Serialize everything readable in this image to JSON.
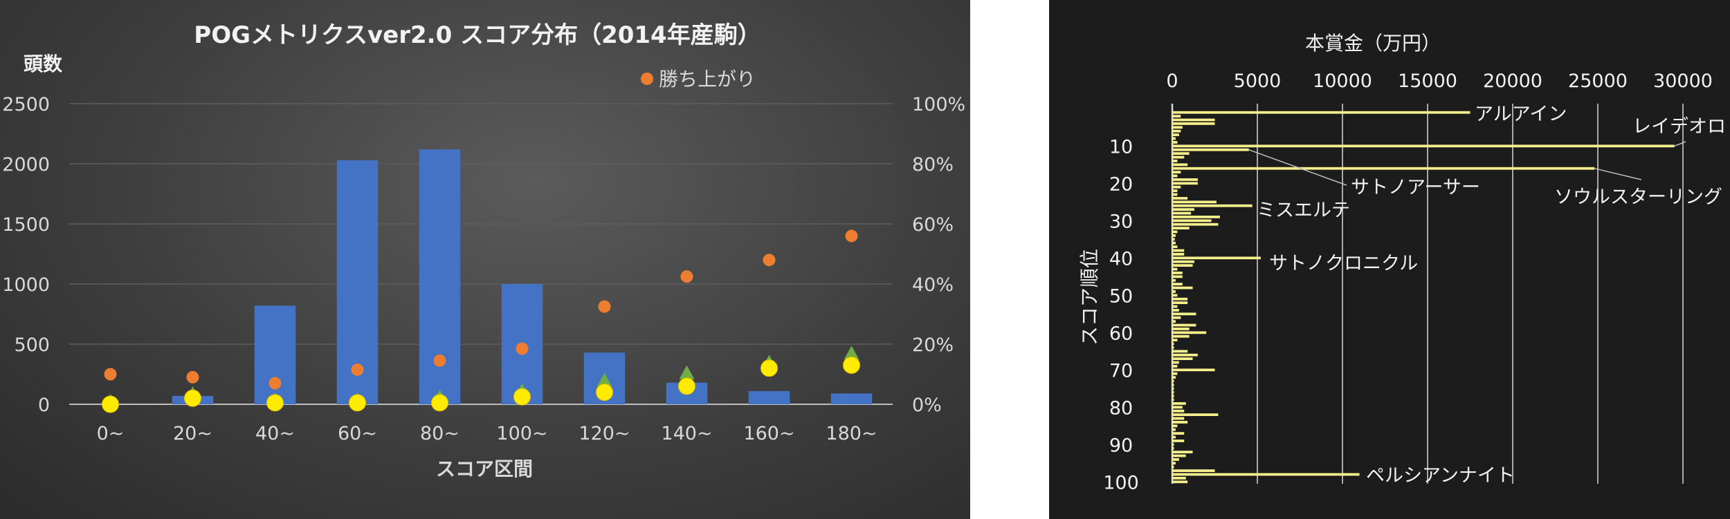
{
  "chart_data": [
    {
      "type": "bar",
      "title": "POGメトリクスver2.0 スコア分布（2014年産駒）",
      "xlabel": "スコア区間",
      "ylabel": "頭数",
      "categories": [
        "0~",
        "20~",
        "40~",
        "60~",
        "80~",
        "100~",
        "120~",
        "140~",
        "160~",
        "180~"
      ],
      "ylim": [
        0,
        2500
      ],
      "yticks": [
        "0",
        "500",
        "1000",
        "1500",
        "2000",
        "2500"
      ],
      "y2lim": [
        0,
        100
      ],
      "y2ticks": [
        "0%",
        "20%",
        "40%",
        "60%",
        "80%",
        "100%"
      ],
      "grid": true,
      "legend": [
        {
          "name": "勝ち上がり",
          "color": "#ed7d31"
        }
      ],
      "legend_position": "top-right",
      "series": [
        {
          "kind": "bar",
          "axis": "left",
          "color": "#4472c4",
          "values": [
            0,
            70,
            820,
            2030,
            2120,
            1000,
            430,
            180,
            110,
            90
          ]
        },
        {
          "kind": "scatter",
          "axis": "right",
          "name": "勝ち上がり",
          "color": "#ed7d31",
          "values": [
            10,
            9,
            7,
            11.5,
            14.5,
            18.5,
            32.5,
            42.5,
            48,
            56
          ]
        },
        {
          "kind": "scatter",
          "axis": "right",
          "marker": "triangle",
          "color": "#70ad47",
          "values": [
            0,
            2.5,
            0.5,
            0.5,
            1.5,
            3.5,
            7,
            9.5,
            13,
            16
          ]
        },
        {
          "kind": "scatter",
          "axis": "right",
          "marker": "circle",
          "color": "#ffeb00",
          "values": [
            0,
            2,
            0.5,
            0.5,
            0.5,
            2.5,
            4,
            6,
            12,
            13
          ]
        }
      ]
    },
    {
      "type": "bar",
      "orientation": "horizontal",
      "xlabel": "本賞金（万円）",
      "ylabel": "スコア順位",
      "xlim": [
        0,
        30000
      ],
      "xticks": [
        "0",
        "5000",
        "10000",
        "15000",
        "20000",
        "25000",
        "30000"
      ],
      "yticks": [
        "10",
        "20",
        "30",
        "40",
        "50",
        "60",
        "70",
        "80",
        "90",
        "100"
      ],
      "ylim": [
        1,
        100
      ],
      "color": "#f5f08c",
      "values": [
        17500,
        500,
        2500,
        2500,
        600,
        500,
        400,
        200,
        300,
        29500,
        4500,
        1000,
        700,
        300,
        900,
        24800,
        500,
        300,
        1500,
        1500,
        500,
        300,
        300,
        900,
        2600,
        4700,
        1300,
        1100,
        2800,
        2300,
        2700,
        1000,
        300,
        200,
        150,
        200,
        300,
        700,
        700,
        5200,
        1300,
        1200,
        300,
        600,
        600,
        200,
        600,
        1200,
        200,
        300,
        900,
        900,
        300,
        400,
        1400,
        500,
        200,
        1400,
        1000,
        2000,
        1000,
        300,
        100,
        100,
        900,
        1500,
        1200,
        400,
        300,
        2500,
        300,
        200,
        100,
        100,
        100,
        100,
        100,
        100,
        800,
        600,
        700,
        2700,
        700,
        900,
        300,
        200,
        700,
        200,
        700,
        100,
        100,
        1200,
        800,
        400,
        200,
        100,
        2500,
        11000,
        800,
        900
      ],
      "annotations": [
        {
          "label": "アルアイン",
          "rank": 1
        },
        {
          "label": "レイデオロ",
          "rank": 10
        },
        {
          "label": "サトノアーサー",
          "rank": 11
        },
        {
          "label": "ソウルスターリング",
          "rank": 16
        },
        {
          "label": "ミスエルテ",
          "rank": 26
        },
        {
          "label": "サトノクロニクル",
          "rank": 40
        },
        {
          "label": "ペルシアンナイト",
          "rank": 98
        }
      ]
    }
  ]
}
